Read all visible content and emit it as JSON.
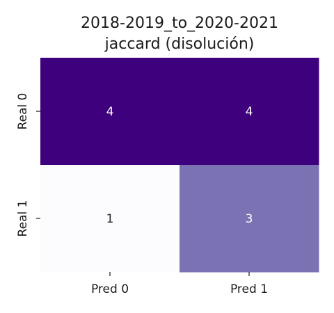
{
  "chart_data": {
    "type": "heatmap",
    "title_lines": [
      "2018-2019_to_2020-2021",
      "jaccard (disolución)"
    ],
    "x_categories": [
      "Pred 0",
      "Pred 1"
    ],
    "y_categories": [
      "Real 0",
      "Real 1"
    ],
    "values": [
      [
        4,
        4
      ],
      [
        1,
        3
      ]
    ],
    "colormap": "Purples",
    "cell_colors": [
      [
        "#3f007d",
        "#3f007d"
      ],
      [
        "#fcfbfd",
        "#7a72b3"
      ]
    ],
    "cell_text_colors": [
      [
        "#ffffff",
        "#ffffff"
      ],
      [
        "#262626",
        "#ffffff"
      ]
    ],
    "colorbar": false,
    "grid": false
  }
}
